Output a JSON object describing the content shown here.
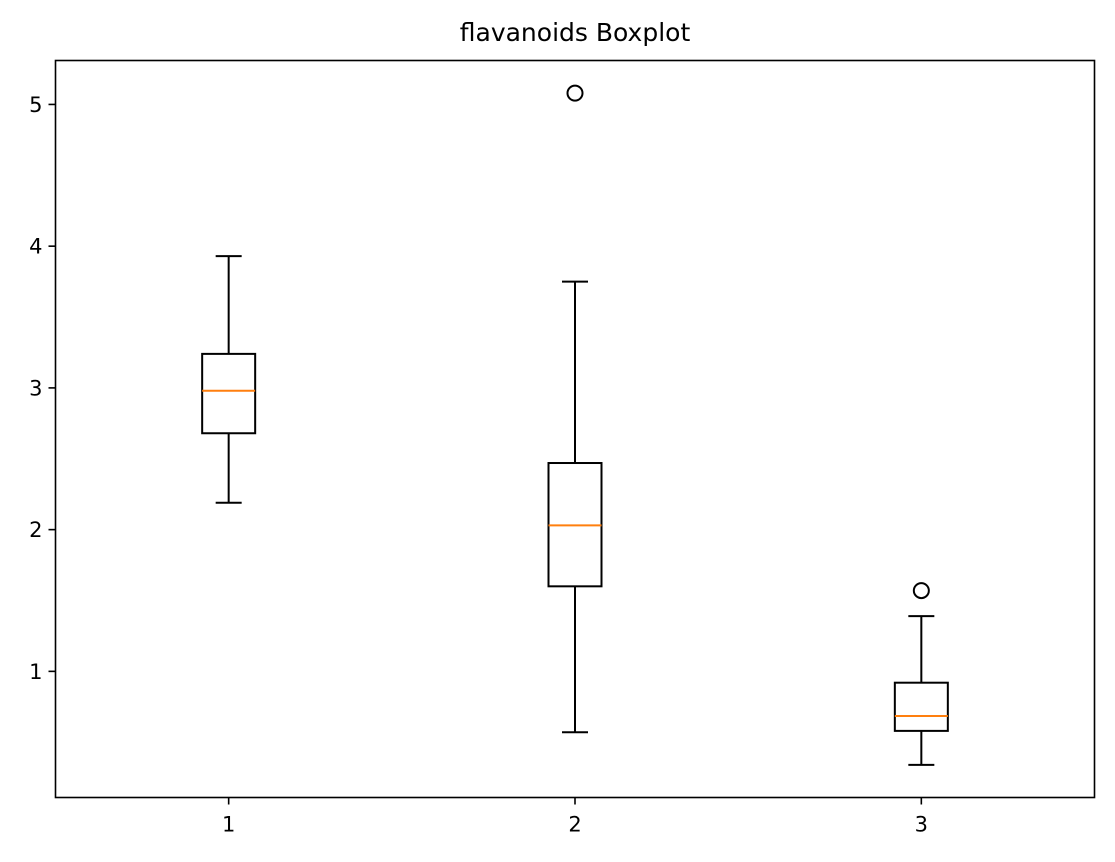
{
  "chart_data": {
    "type": "boxplot",
    "title": "flavanoids Boxplot",
    "xlabel": "",
    "ylabel": "",
    "categories": [
      "1",
      "2",
      "3"
    ],
    "x_ticks": [
      "1",
      "2",
      "3"
    ],
    "y_ticks": [
      1,
      2,
      3,
      4,
      5
    ],
    "y_tick_labels": [
      "1",
      "2",
      "3",
      "4",
      "5"
    ],
    "xlim": [
      0.5,
      3.5
    ],
    "ylim": [
      0.11,
      5.31
    ],
    "grid": false,
    "boxes": [
      {
        "category": "1",
        "whisker_low": 2.19,
        "q1": 2.68,
        "median": 2.98,
        "q3": 3.24,
        "whisker_high": 3.93,
        "outliers": []
      },
      {
        "category": "2",
        "whisker_low": 0.57,
        "q1": 1.6,
        "median": 2.03,
        "q3": 2.47,
        "whisker_high": 3.75,
        "outliers": [
          5.08
        ]
      },
      {
        "category": "3",
        "whisker_low": 0.34,
        "q1": 0.58,
        "median": 0.685,
        "q3": 0.92,
        "whisker_high": 1.39,
        "outliers": [
          1.57
        ]
      }
    ],
    "colors": {
      "box": "#000000",
      "median": "#ff7f0e",
      "outlier": "#000000"
    }
  }
}
